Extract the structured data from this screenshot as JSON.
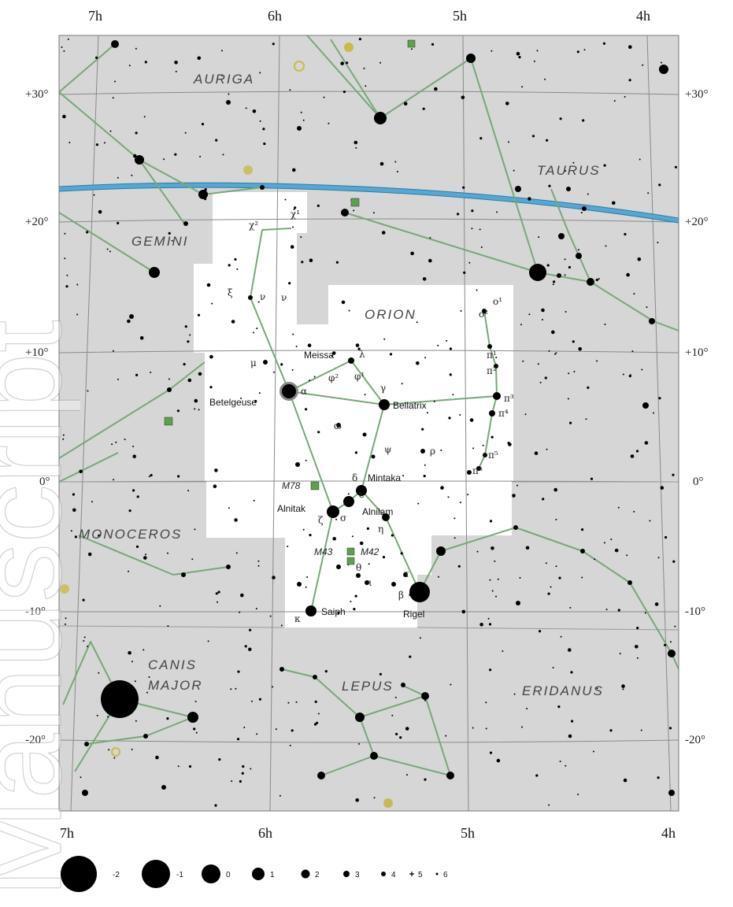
{
  "map": {
    "ra_labels": {
      "top": [
        "7h",
        "6h",
        "5h",
        "4h"
      ],
      "bottom": [
        "7h",
        "6h",
        "5h",
        "4h"
      ]
    },
    "dec_labels": [
      "+30°",
      "+20°",
      "+10°",
      "0°",
      "-10°",
      "-20°"
    ],
    "constellations": [
      "AURIGA",
      "TAURUS",
      "GEMINI",
      "ORION",
      "MONOCEROS",
      "CANIS",
      "MAJOR",
      "LEPUS",
      "ERIDANUS"
    ],
    "named_stars": [
      "Meissa",
      "Betelgeuse",
      "Bellatrix",
      "Mintaka",
      "Alnitak",
      "Alnilam",
      "Saiph",
      "Rigel"
    ],
    "greek_labels": [
      "χ²",
      "χ¹",
      "ξ",
      "ν",
      "μ",
      "λ",
      "φ²",
      "φ¹",
      "γ",
      "α",
      "η",
      "δ",
      "ε",
      "ζ",
      "σ",
      "ι",
      "κ",
      "β",
      "τ",
      "θ",
      "ω",
      "ψ",
      "ρ",
      "π¹",
      "π²",
      "π³",
      "π⁴",
      "π⁵",
      "π⁶",
      "o¹",
      "o²",
      "ν"
    ],
    "deep_sky": [
      "M78",
      "M43",
      "M42"
    ],
    "magnitude_legend": [
      "-2",
      "-1",
      "0",
      "1",
      "2",
      "3",
      "4",
      "5",
      "6"
    ],
    "watermark": "Manuscript",
    "colors": {
      "background": "#d6d6d6",
      "region": "#ffffff",
      "grid": "#8a8a8a",
      "lines": "#77a877",
      "ecliptic": "#55a8d4",
      "ecliptic_edge": "#2d7aa8",
      "stars": "#000000",
      "cluster": "#5da04f",
      "nebula": "#c9b94e"
    }
  }
}
